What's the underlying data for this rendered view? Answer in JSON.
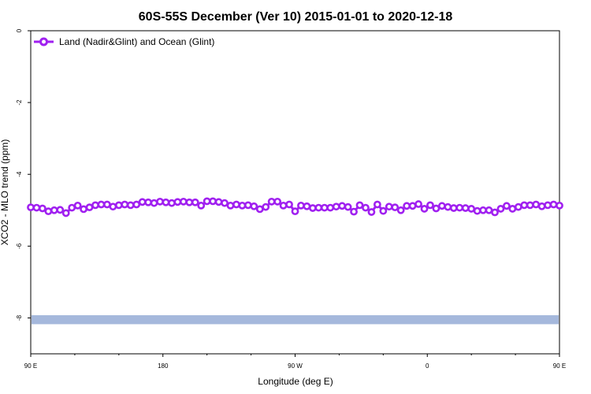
{
  "chart_data": {
    "type": "line",
    "title": "60S-55S December (Ver 10)   2015-01-01 to 2020-12-18",
    "xlabel": "Longitude (deg E)",
    "ylabel": "XCO2 - MLO trend (ppm)",
    "xlim": [
      90,
      450
    ],
    "ylim": [
      -9,
      0
    ],
    "x_ticks": [
      90,
      180,
      270,
      360,
      450
    ],
    "x_tick_labels": [
      "90 E",
      "180",
      "90 W",
      "0",
      "90 E"
    ],
    "x_minor_ticks": [
      120,
      150,
      210,
      240,
      300,
      330,
      390,
      420
    ],
    "x_tick_labels_extra": [
      "180"
    ],
    "y_ticks": [
      0,
      -2,
      -4,
      -6,
      -8
    ],
    "y_tick_labels": [
      "0",
      "-2",
      "-4",
      "-6",
      "-8"
    ],
    "grid": false,
    "legend_position": "top-left",
    "series": [
      {
        "name": "Land (Nadir&Glint) and Ocean (Glint)",
        "color": "#a020f0",
        "marker": "circle",
        "x": [
          90,
          94,
          98,
          102,
          106,
          110,
          114,
          118,
          122,
          126,
          130,
          134,
          138,
          142,
          146,
          150,
          154,
          158,
          162,
          166,
          170,
          174,
          178,
          182,
          186,
          190,
          194,
          198,
          202,
          206,
          210,
          214,
          218,
          222,
          226,
          230,
          234,
          238,
          242,
          246,
          250,
          254,
          258,
          262,
          266,
          270,
          274,
          278,
          282,
          286,
          290,
          294,
          298,
          302,
          306,
          310,
          314,
          318,
          322,
          326,
          330,
          334,
          338,
          342,
          346,
          350,
          354,
          358,
          362,
          366,
          370,
          374,
          378,
          382,
          386,
          390,
          394,
          398,
          402,
          406,
          410,
          414,
          418,
          422,
          426,
          430,
          434,
          438,
          442,
          446,
          450
        ],
        "values": [
          -4.92,
          -4.93,
          -4.95,
          -5.03,
          -5.0,
          -4.99,
          -5.08,
          -4.93,
          -4.87,
          -4.97,
          -4.92,
          -4.86,
          -4.84,
          -4.84,
          -4.9,
          -4.86,
          -4.84,
          -4.86,
          -4.84,
          -4.77,
          -4.78,
          -4.8,
          -4.76,
          -4.78,
          -4.8,
          -4.77,
          -4.76,
          -4.78,
          -4.78,
          -4.87,
          -4.75,
          -4.75,
          -4.77,
          -4.8,
          -4.87,
          -4.84,
          -4.87,
          -4.86,
          -4.89,
          -4.97,
          -4.91,
          -4.76,
          -4.76,
          -4.87,
          -4.84,
          -5.03,
          -4.87,
          -4.89,
          -4.94,
          -4.93,
          -4.93,
          -4.93,
          -4.9,
          -4.88,
          -4.91,
          -5.04,
          -4.86,
          -4.93,
          -5.05,
          -4.84,
          -5.02,
          -4.9,
          -4.92,
          -5.0,
          -4.88,
          -4.88,
          -4.83,
          -4.96,
          -4.86,
          -4.95,
          -4.88,
          -4.91,
          -4.94,
          -4.93,
          -4.94,
          -4.96,
          -5.02,
          -5.0,
          -5.0,
          -5.06,
          -4.96,
          -4.88,
          -4.96,
          -4.91,
          -4.86,
          -4.86,
          -4.84,
          -4.89,
          -4.86,
          -4.84,
          -4.87
        ]
      },
      {
        "name": "",
        "color": "#a5b8dc",
        "marker": "band",
        "x": [
          90,
          450
        ],
        "values": [
          -8.05,
          -8.05
        ],
        "band_width": 0.25
      }
    ]
  }
}
